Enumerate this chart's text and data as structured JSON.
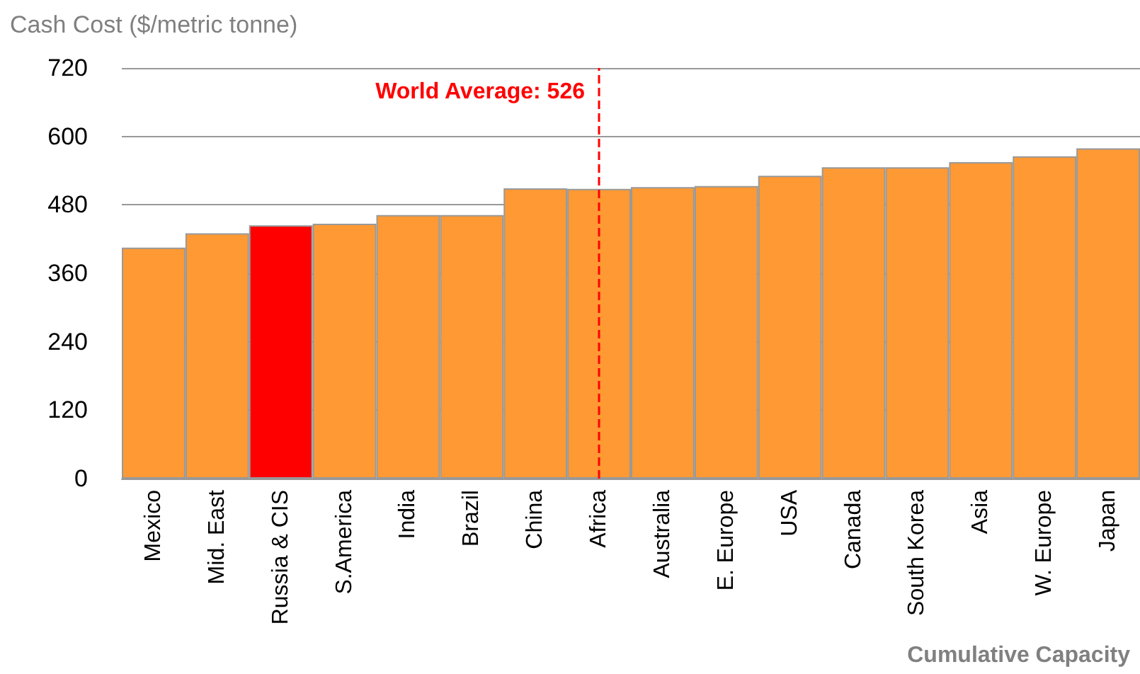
{
  "chart_data": {
    "type": "bar",
    "ylabel": "Cash Cost ($/metric tonne)",
    "xlabel": "Cumulative Capacity",
    "categories": [
      "Mexico",
      "Mid. East",
      "Russia & CIS",
      "S.America",
      "India",
      "Brazil",
      "China",
      "Africa",
      "Australia",
      "E. Europe",
      "USA",
      "Canada",
      "South Korea",
      "Asia",
      "W. Europe",
      "Japan"
    ],
    "values": [
      405,
      430,
      444,
      447,
      462,
      462,
      509,
      508,
      511,
      513,
      531,
      546,
      546,
      555,
      565,
      579
    ],
    "colors": [
      "#ff9933",
      "#ff9933",
      "#ff0000",
      "#ff9933",
      "#ff9933",
      "#ff9933",
      "#ff9933",
      "#ff9933",
      "#ff9933",
      "#ff9933",
      "#ff9933",
      "#ff9933",
      "#ff9933",
      "#ff9933",
      "#ff9933",
      "#ff9933"
    ],
    "ylim": [
      0,
      720
    ],
    "yticks": [
      0,
      120,
      240,
      360,
      480,
      600,
      720
    ],
    "grid": "y",
    "ref_lines": [
      {
        "axis": "x",
        "value": "Africa",
        "label": "World Average: 526",
        "color": "#ff0000",
        "line_style": "dashed"
      }
    ]
  }
}
